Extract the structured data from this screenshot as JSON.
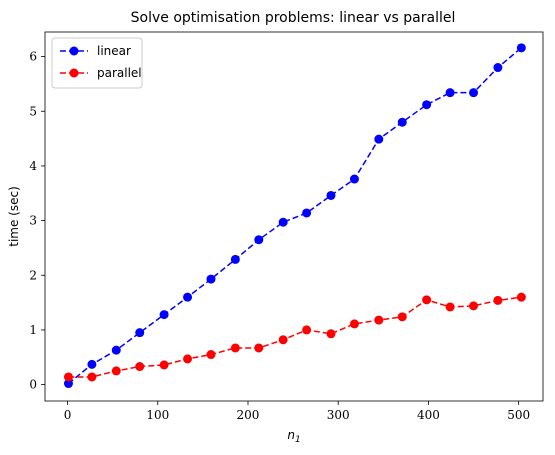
{
  "chart_data": {
    "type": "line",
    "title": "Solve optimisation problems: linear vs parallel",
    "xlabel": "n",
    "xlabel_subscript": "1",
    "ylabel": "time (sec)",
    "xlim": [
      -25,
      527
    ],
    "ylim": [
      -0.3,
      6.45
    ],
    "xticks": [
      0,
      100,
      200,
      300,
      400,
      500
    ],
    "yticks": [
      0,
      1,
      2,
      3,
      4,
      5,
      6
    ],
    "grid": false,
    "legend_position": "top-left",
    "x": [
      1,
      27,
      54,
      80,
      107,
      133,
      159,
      186,
      212,
      239,
      265,
      292,
      318,
      345,
      371,
      398,
      424,
      450,
      477,
      503
    ],
    "series": [
      {
        "name": "linear",
        "color": "#0000ff",
        "values": [
          0.02,
          0.37,
          0.63,
          0.95,
          1.28,
          1.6,
          1.93,
          2.29,
          2.65,
          2.97,
          3.14,
          3.46,
          3.76,
          4.49,
          4.8,
          5.12,
          5.34,
          5.34,
          5.8,
          6.16
        ]
      },
      {
        "name": "parallel",
        "color": "#ff0000",
        "values": [
          0.14,
          0.14,
          0.25,
          0.33,
          0.36,
          0.47,
          0.55,
          0.67,
          0.67,
          0.82,
          1.0,
          0.93,
          1.11,
          1.18,
          1.24,
          1.55,
          1.42,
          1.44,
          1.54,
          1.6
        ]
      }
    ]
  }
}
